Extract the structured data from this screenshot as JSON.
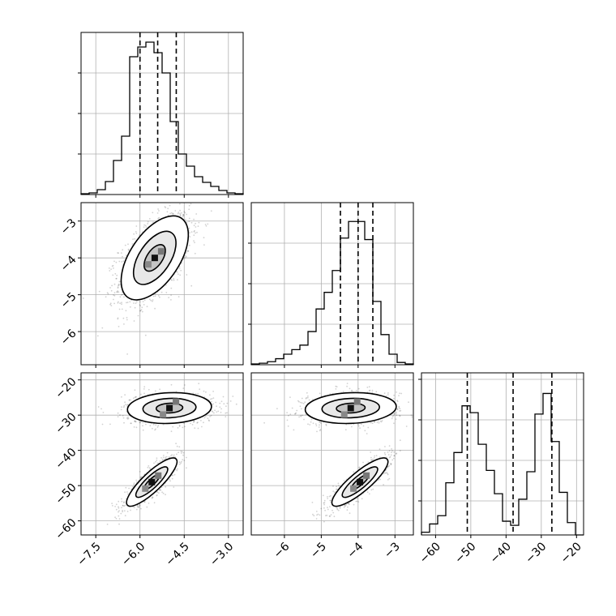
{
  "chart_data": {
    "type": "corner",
    "parameters": [
      {
        "range": [
          -8.0,
          -2.5
        ],
        "ticks": [
          -7.5,
          -6.0,
          -4.5,
          -3.0
        ],
        "tick_labels": [
          "−7.5",
          "−6.0",
          "−4.5",
          "−3.0"
        ]
      },
      {
        "range": [
          -6.9,
          -2.5
        ],
        "ticks": [
          -6,
          -5,
          -4,
          -3
        ],
        "tick_labels": [
          "−6",
          "−5",
          "−4",
          "−3"
        ]
      },
      {
        "range": [
          -64,
          -18
        ],
        "ticks": [
          -60,
          -50,
          -40,
          -30,
          -20
        ],
        "tick_labels": [
          "−60",
          "−50",
          "−40",
          "−30",
          "−20"
        ]
      }
    ],
    "histograms": [
      {
        "bin_edges": [
          -8.0,
          -7.725,
          -7.45,
          -7.175,
          -6.9,
          -6.625,
          -6.35,
          -6.075,
          -5.8,
          -5.525,
          -5.25,
          -4.975,
          -4.7,
          -4.425,
          -4.15,
          -3.875,
          -3.6,
          -3.325,
          -3.05,
          -2.775,
          -2.5
        ],
        "counts": [
          1,
          2,
          6,
          16,
          42,
          72,
          170,
          182,
          188,
          175,
          150,
          90,
          50,
          35,
          22,
          15,
          10,
          5,
          2,
          1
        ],
        "quantiles": [
          -6.0,
          -5.4,
          -4.77
        ],
        "ymax": 200
      },
      {
        "bin_edges": [
          -6.9,
          -6.68,
          -6.46,
          -6.24,
          -6.02,
          -5.8,
          -5.58,
          -5.36,
          -5.14,
          -4.92,
          -4.7,
          -4.48,
          -4.26,
          -4.04,
          -3.82,
          -3.6,
          -3.38,
          -3.16,
          -2.94,
          -2.72,
          -2.5
        ],
        "counts": [
          1,
          2,
          4,
          8,
          14,
          20,
          26,
          44,
          74,
          96,
          125,
          168,
          190,
          190,
          166,
          84,
          40,
          14,
          3,
          1
        ],
        "quantiles": [
          -4.48,
          -4.0,
          -3.6
        ],
        "ymax": 215
      },
      {
        "bin_edges": [
          -64,
          -61.7,
          -59.4,
          -57.1,
          -54.8,
          -52.5,
          -50.2,
          -47.9,
          -45.6,
          -43.3,
          -41.0,
          -38.7,
          -36.4,
          -34.1,
          -31.8,
          -29.5,
          -27.2,
          -24.9,
          -22.6,
          -20.3,
          -18
        ],
        "counts": [
          2,
          8,
          14,
          38,
          60,
          94,
          89,
          66,
          47,
          30,
          10,
          7,
          26,
          46,
          88,
          103,
          68,
          31,
          9,
          0
        ],
        "quantiles": [
          -51.0,
          -38.0,
          -27.0
        ],
        "ymax": 118
      }
    ],
    "joint": [
      {
        "x_param": 0,
        "y_param": 1,
        "clusters": [
          {
            "mean": [
              -5.5,
              -4.0
            ],
            "sd": [
              0.6,
              0.6
            ],
            "rho": 0.55
          }
        ]
      },
      {
        "x_param": 0,
        "y_param": 2,
        "clusters": [
          {
            "mean": [
              -5.0,
              -28.0
            ],
            "sd": [
              0.75,
              2.3
            ],
            "rho": 0.1
          },
          {
            "mean": [
              -5.6,
              -49.0
            ],
            "sd": [
              0.45,
              3.6
            ],
            "rho": 0.85
          }
        ]
      },
      {
        "x_param": 1,
        "y_param": 2,
        "clusters": [
          {
            "mean": [
              -4.2,
              -28.0
            ],
            "sd": [
              0.65,
              2.3
            ],
            "rho": 0.1
          },
          {
            "mean": [
              -3.95,
              -49.0
            ],
            "sd": [
              0.4,
              3.6
            ],
            "rho": 0.85
          }
        ]
      }
    ],
    "grid": true,
    "legend": "none"
  }
}
